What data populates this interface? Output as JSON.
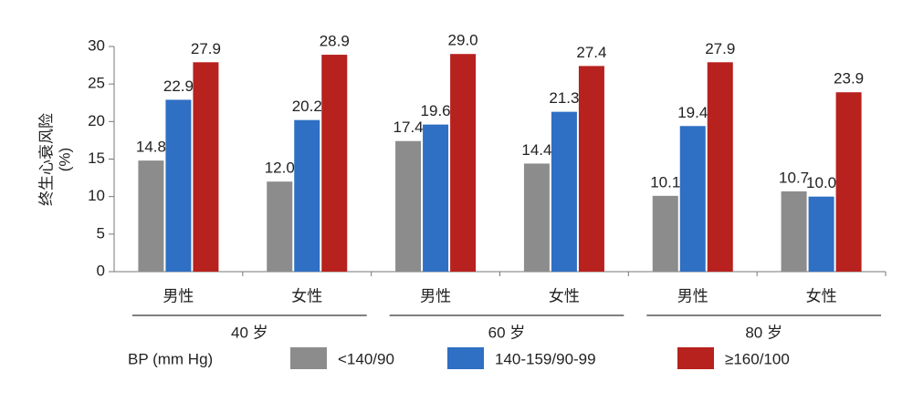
{
  "chart_data": {
    "type": "bar",
    "y_label": [
      "终生心衰风险",
      "(%)"
    ],
    "categories": [
      "男性",
      "女性",
      "男性",
      "女性",
      "男性",
      "女性"
    ],
    "groups": [
      "40 岁",
      "60 岁",
      "80 岁"
    ],
    "legend_title": "BP (mm Hg)",
    "series": [
      {
        "name": "<140/90",
        "color": "#8c8c8c",
        "values": [
          14.8,
          12.0,
          17.4,
          14.4,
          10.1,
          10.7
        ],
        "value_labels": [
          "14.8",
          "12.0",
          "17.4",
          "14.4",
          "10.1",
          "10.7"
        ]
      },
      {
        "name": "140-159/90-99",
        "color": "#2f6fc4",
        "values": [
          22.9,
          20.2,
          19.6,
          21.3,
          19.4,
          10.0
        ],
        "value_labels": [
          "22.9",
          "20.2",
          "19.6",
          "21.3",
          "19.4",
          "10.0"
        ]
      },
      {
        "name": "≥160/100",
        "color": "#b7211e",
        "values": [
          27.9,
          28.9,
          29.0,
          27.4,
          27.9,
          23.9
        ],
        "value_labels": [
          "27.9",
          "28.9",
          "29.0",
          "27.4",
          "27.9",
          "23.9"
        ]
      }
    ],
    "ylim": [
      0,
      30
    ],
    "yticks": [
      0,
      5,
      10,
      15,
      20,
      25,
      30
    ],
    "legend": "bottom"
  }
}
